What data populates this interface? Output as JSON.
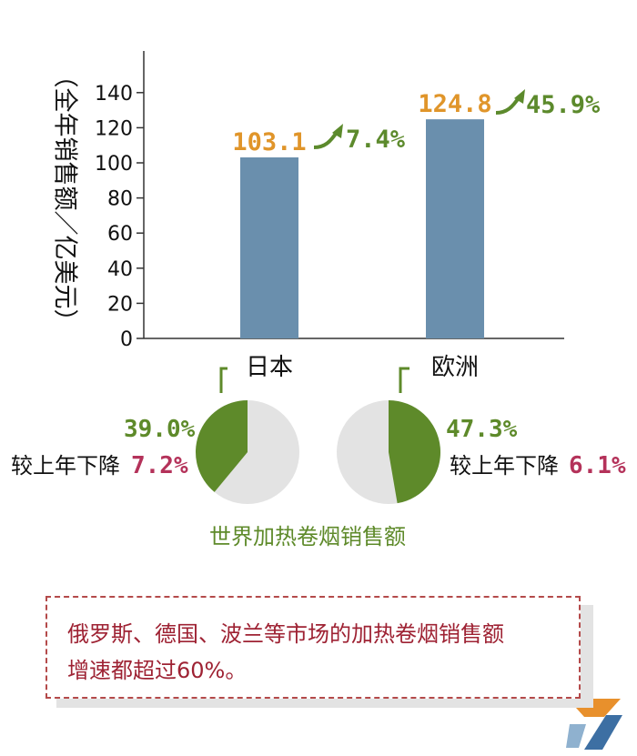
{
  "chart_data": [
    {
      "type": "bar",
      "ylabel": "（全年销售额／亿美元）",
      "categories": [
        "日本",
        "欧洲"
      ],
      "values": [
        103.1,
        124.8
      ],
      "value_labels": [
        "103.1",
        "124.8"
      ],
      "growth_labels": [
        "7.4%",
        "45.9%"
      ],
      "yticks": [
        0,
        20,
        40,
        60,
        80,
        100,
        120,
        140
      ],
      "ylim": [
        0,
        160
      ],
      "grid": false
    },
    {
      "type": "pie",
      "title": "世界加热卷烟销售额",
      "pies": [
        {
          "category": "日本",
          "share": 39.0,
          "share_label": "39.0%",
          "change_text": "较上年下降",
          "change_value": "7.2%"
        },
        {
          "category": "欧洲",
          "share": 47.3,
          "share_label": "47.3%",
          "change_text": "较上年下降",
          "change_value": "6.1%"
        }
      ]
    }
  ],
  "note": {
    "line1": "俄罗斯、德国、波兰等市场的加热卷烟销售额",
    "line2": "增速都超过60%。"
  },
  "colors": {
    "bar": "#6a8fad",
    "value_label": "#e0952a",
    "growth": "#5c8a2c",
    "pie_share": "#5e8a2a",
    "pie_rest": "#e3e3e3",
    "decline": "#b4325a",
    "axis": "#333333",
    "note_text": "#9e2233"
  }
}
